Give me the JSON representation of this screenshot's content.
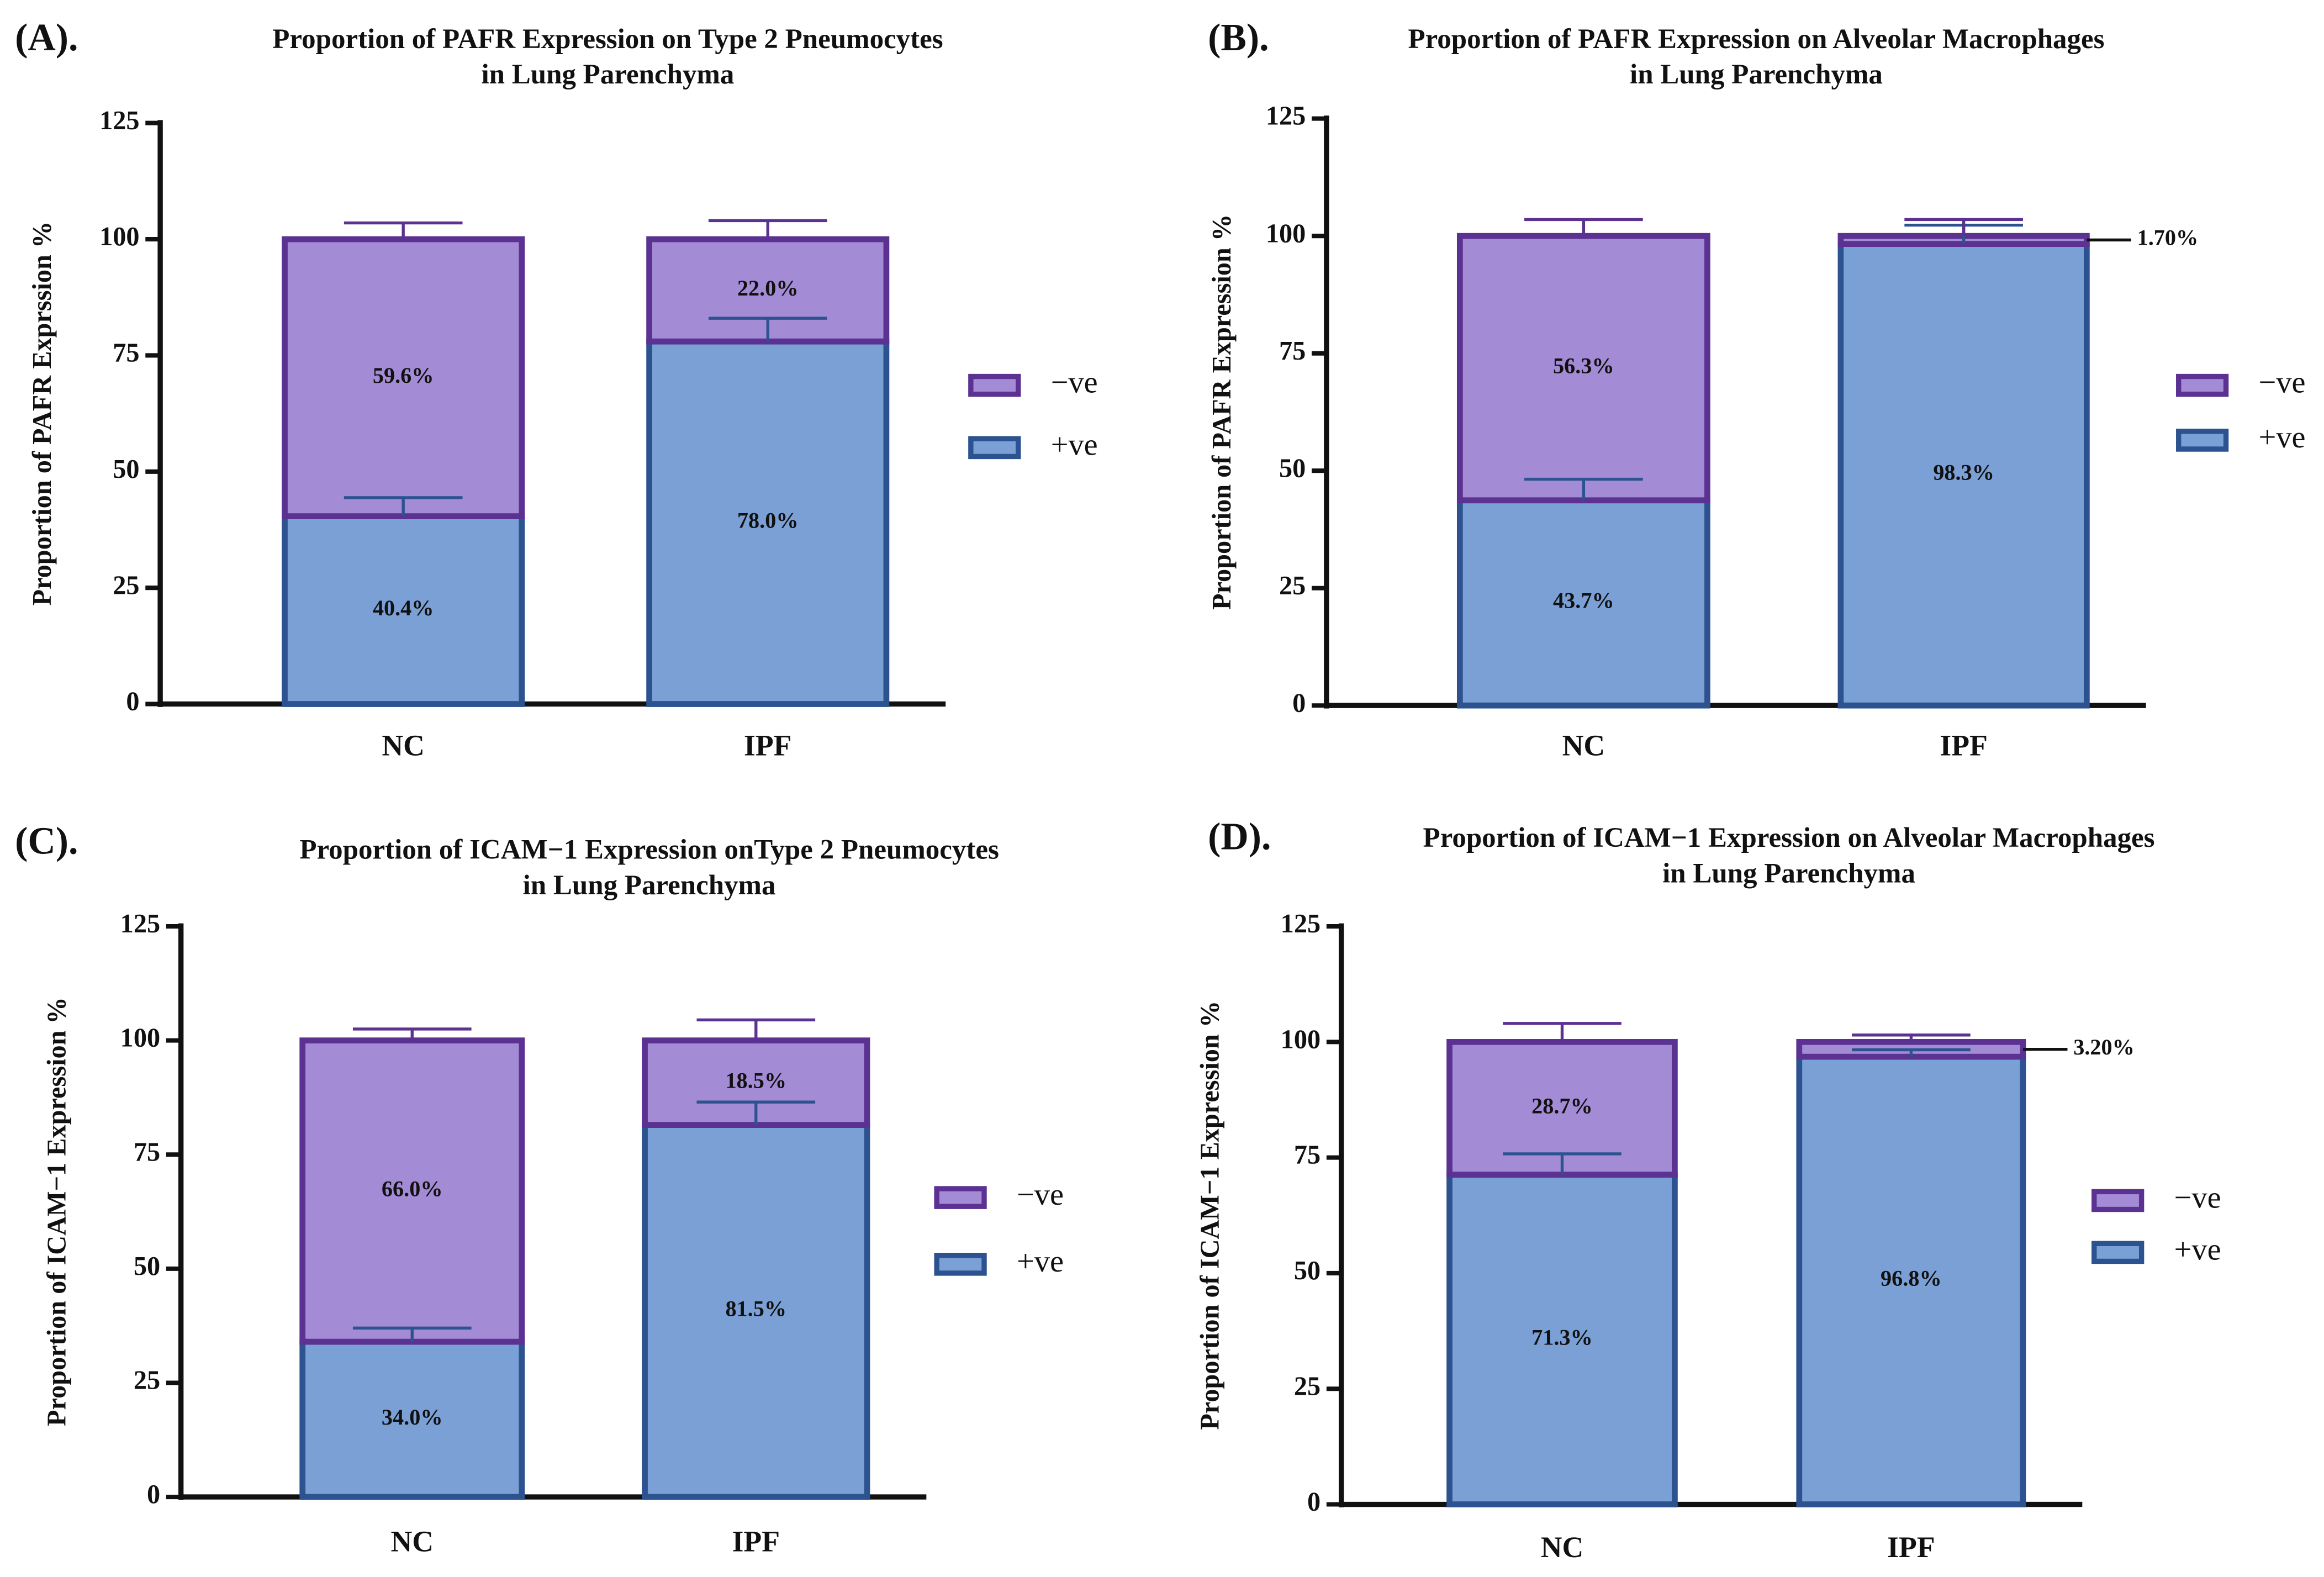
{
  "chart_data": [
    {
      "type": "bar",
      "stacked": true,
      "panel": "(A).",
      "title": [
        "Proportion of PAFR Expression on Type 2 Pneumocytes",
        "in Lung Parenchyma"
      ],
      "ylabel": "Proportion of PAFR Exprssion %",
      "categories": [
        "NC",
        "IPF"
      ],
      "series": [
        {
          "name": "+ve",
          "color": "#7ba0d5",
          "edge": "#2d5290",
          "values": [
            40.4,
            78.0
          ],
          "value_labels": [
            "40.4%",
            "78.0%"
          ],
          "errors": [
            4,
            5
          ]
        },
        {
          "name": "−ve",
          "color": "#a48bd5",
          "edge": "#5b3192",
          "values": [
            59.6,
            22.0
          ],
          "value_labels": [
            "59.6%",
            "22.0%"
          ],
          "errors": [
            3.5,
            4
          ]
        }
      ],
      "ylim": [
        0,
        125
      ],
      "yticks": [
        0,
        25,
        50,
        75,
        100,
        125
      ]
    },
    {
      "type": "bar",
      "stacked": true,
      "panel": "(B).",
      "title": [
        "Proportion of PAFR Expression on Alveolar Macrophages",
        "in Lung Parenchyma"
      ],
      "ylabel": "Proportion of PAFR Expression %",
      "categories": [
        "NC",
        "IPF"
      ],
      "series": [
        {
          "name": "+ve",
          "color": "#7ba0d5",
          "edge": "#2d5290",
          "values": [
            43.7,
            98.3
          ],
          "value_labels": [
            "43.7%",
            "98.3%"
          ],
          "errors": [
            4.5,
            4
          ]
        },
        {
          "name": "−ve",
          "color": "#a48bd5",
          "edge": "#5b3192",
          "values": [
            56.3,
            1.7
          ],
          "value_labels": [
            "56.3%",
            "1.70%"
          ],
          "errors": [
            3.5,
            3.5
          ]
        }
      ],
      "ylim": [
        0,
        125
      ],
      "yticks": [
        0,
        25,
        50,
        75,
        100,
        125
      ]
    },
    {
      "type": "bar",
      "stacked": true,
      "panel": "(C).",
      "title": [
        "Proportion of ICAM−1 Expression onType 2 Pneumocytes",
        "in Lung Parenchyma"
      ],
      "ylabel": "Proportion of ICAM−1 Expression %",
      "categories": [
        "NC",
        "IPF"
      ],
      "series": [
        {
          "name": "+ve",
          "color": "#7ba0d5",
          "edge": "#2d5290",
          "values": [
            34.0,
            81.5
          ],
          "value_labels": [
            "34.0%",
            "81.5%"
          ],
          "errors": [
            3,
            5
          ]
        },
        {
          "name": "−ve",
          "color": "#a48bd5",
          "edge": "#5b3192",
          "values": [
            66.0,
            18.5
          ],
          "value_labels": [
            "66.0%",
            "18.5%"
          ],
          "errors": [
            2.5,
            4.5
          ]
        }
      ],
      "ylim": [
        0,
        125
      ],
      "yticks": [
        0,
        25,
        50,
        75,
        100,
        125
      ]
    },
    {
      "type": "bar",
      "stacked": true,
      "panel": "(D).",
      "title": [
        "Proportion of ICAM−1 Expression on Alveolar Macrophages",
        "in Lung Parenchyma"
      ],
      "ylabel": "Proportion of ICAM−1 Expression %",
      "categories": [
        "NC",
        "IPF"
      ],
      "series": [
        {
          "name": "+ve",
          "color": "#7ba0d5",
          "edge": "#2d5290",
          "values": [
            71.3,
            96.8
          ],
          "value_labels": [
            "71.3%",
            "96.8%"
          ],
          "errors": [
            4.5,
            1.5
          ]
        },
        {
          "name": "−ve",
          "color": "#a48bd5",
          "edge": "#5b3192",
          "values": [
            28.7,
            3.2
          ],
          "value_labels": [
            "28.7%",
            "3.20%"
          ],
          "errors": [
            4,
            1.5
          ]
        }
      ],
      "ylim": [
        0,
        125
      ],
      "yticks": [
        0,
        25,
        50,
        75,
        100,
        125
      ]
    }
  ]
}
